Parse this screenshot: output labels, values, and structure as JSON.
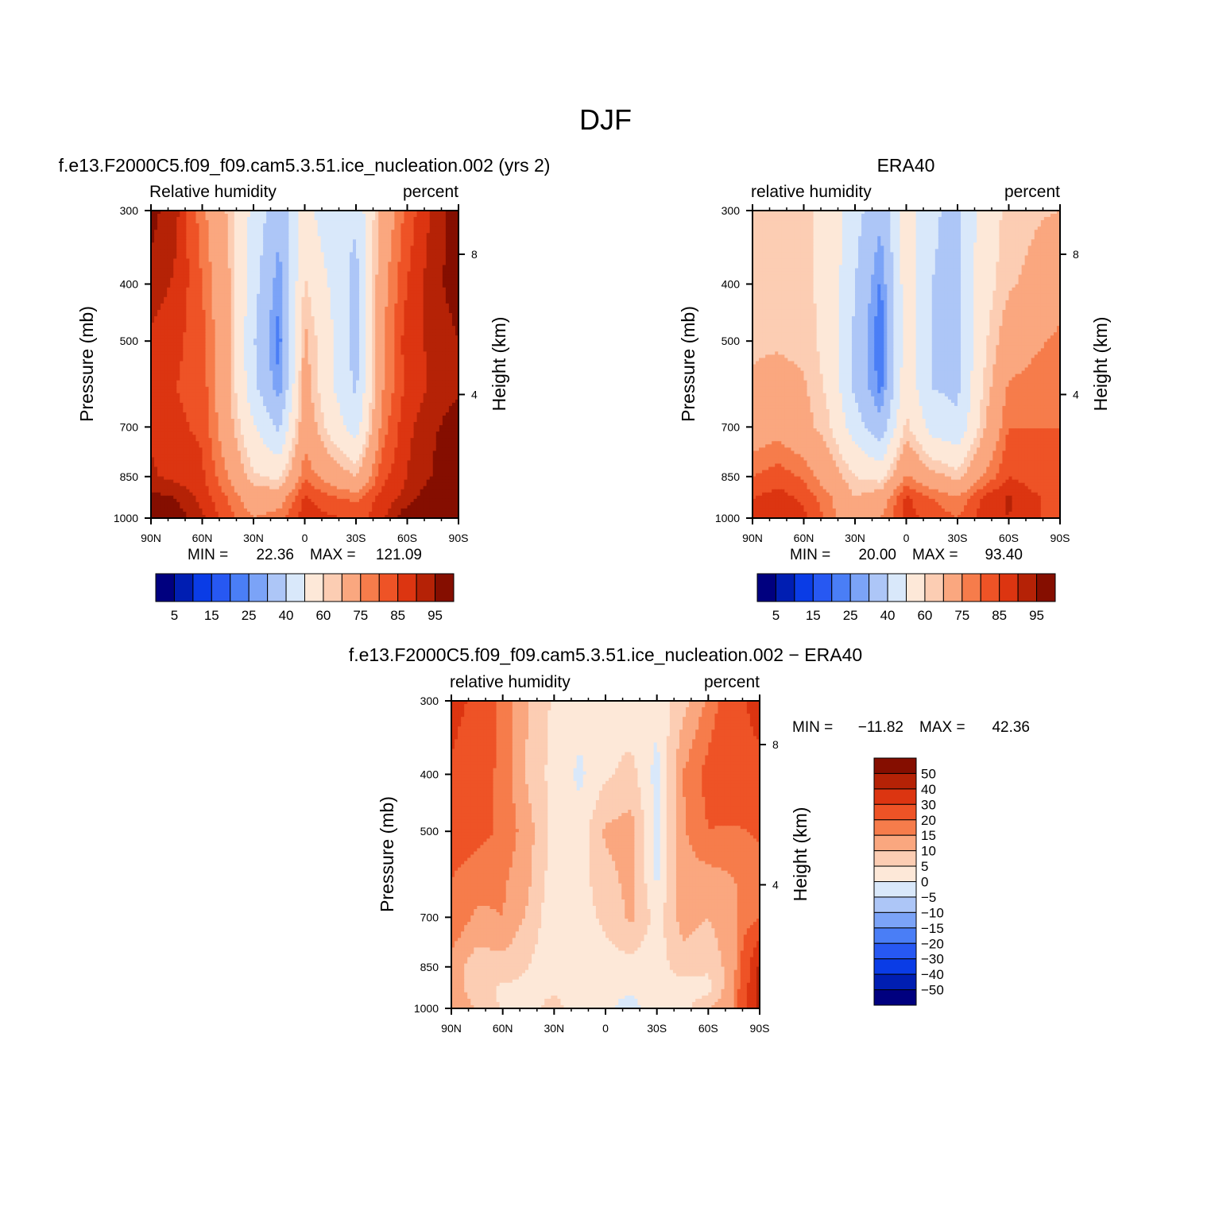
{
  "figure_title": "DJF",
  "colors": {
    "relhum": [
      "#00007f",
      "#001eb2",
      "#0a3ce6",
      "#2758f2",
      "#4a7ef6",
      "#7ba3f7",
      "#adc6f7",
      "#d9e8fa",
      "#fde8d8",
      "#fccdb3",
      "#faa77f",
      "#f67c4b",
      "#ee5326",
      "#dc3511",
      "#b52206",
      "#850e00"
    ],
    "diff": [
      "#00007f",
      "#001eb2",
      "#0a3ce6",
      "#2758f2",
      "#4a7ef6",
      "#7ba3f7",
      "#adc6f7",
      "#d9e8fa",
      "#fde8d8",
      "#fccdb3",
      "#faa77f",
      "#f67c4b",
      "#ee5326",
      "#dc3511",
      "#b52206",
      "#850e00"
    ]
  },
  "chart_data": [
    {
      "type": "heatmap",
      "title": "f.e13.F2000C5.f09_f09.cam5.3.51.ice_nucleation.002 (yrs 2)",
      "left_label": "Relative humidity",
      "right_label": "percent",
      "xlabel": "",
      "ylabel": "Pressure (mb)",
      "ylabel_right": "Height (km)",
      "x_ticks": [
        "90N",
        "60N",
        "30N",
        "0",
        "30S",
        "60S",
        "90S"
      ],
      "x_tick_values": [
        90,
        60,
        30,
        0,
        -30,
        -60,
        -90
      ],
      "xlim": [
        90,
        -90
      ],
      "y_ticks": [
        "300",
        "400",
        "500",
        "700",
        "850",
        "1000"
      ],
      "y_tick_values": [
        300,
        400,
        500,
        700,
        850,
        1000
      ],
      "ylim": [
        1000,
        300
      ],
      "height_ticks": [
        "8",
        "4"
      ],
      "height_tick_values": [
        8,
        4
      ],
      "min_label": "MIN =",
      "min_value": "22.36",
      "max_label": "MAX =",
      "max_value": "121.09",
      "colorbar_orientation": "horizontal",
      "colorbar_labels": [
        "5",
        "15",
        "25",
        "40",
        "60",
        "75",
        "85",
        "95"
      ],
      "levels": [
        5,
        10,
        15,
        20,
        25,
        30,
        40,
        50,
        60,
        65,
        75,
        80,
        85,
        90,
        95
      ],
      "field": {
        "lat": [
          90,
          75,
          60,
          45,
          30,
          15,
          0,
          -15,
          -30,
          -45,
          -60,
          -75,
          -90
        ],
        "lev": [
          300,
          400,
          500,
          600,
          700,
          850,
          925,
          1000
        ],
        "values": [
          [
            97,
            91,
            77,
            64,
            47,
            33,
            54,
            43,
            42,
            68,
            82,
            91,
            99
          ],
          [
            93,
            89,
            80,
            67,
            44,
            26,
            61,
            49,
            36,
            72,
            85,
            93,
            98
          ],
          [
            89,
            86,
            82,
            67,
            41,
            22,
            67,
            52,
            36,
            73,
            88,
            91,
            95
          ],
          [
            87,
            85,
            83,
            67,
            43,
            26,
            69,
            52,
            38,
            74,
            87,
            91,
            93
          ],
          [
            89,
            86,
            84,
            69,
            51,
            38,
            72,
            57,
            45,
            77,
            89,
            93,
            100
          ],
          [
            91,
            88,
            86,
            75,
            61,
            58,
            79,
            71,
            65,
            83,
            90,
            95,
            121
          ],
          [
            97,
            95,
            88,
            80,
            70,
            71,
            86,
            81,
            79,
            87,
            92,
            100,
            121
          ],
          [
            100,
            98,
            91,
            82,
            75,
            78,
            88,
            86,
            83,
            88,
            100,
            100,
            121
          ]
        ]
      }
    },
    {
      "type": "heatmap",
      "title": "ERA40",
      "left_label": "relative humidity",
      "right_label": "percent",
      "xlabel": "",
      "ylabel": "Pressure (mb)",
      "ylabel_right": "Height (km)",
      "x_ticks": [
        "90N",
        "60N",
        "30N",
        "0",
        "30S",
        "60S",
        "90S"
      ],
      "x_tick_values": [
        90,
        60,
        30,
        0,
        -30,
        -60,
        -90
      ],
      "xlim": [
        90,
        -90
      ],
      "y_ticks": [
        "300",
        "400",
        "500",
        "700",
        "850",
        "1000"
      ],
      "y_tick_values": [
        300,
        400,
        500,
        700,
        850,
        1000
      ],
      "ylim": [
        1000,
        300
      ],
      "height_ticks": [
        "8",
        "4"
      ],
      "height_tick_values": [
        8,
        4
      ],
      "min_label": "MIN =",
      "min_value": "20.00",
      "max_label": "MAX =",
      "max_value": "93.40",
      "colorbar_orientation": "horizontal",
      "colorbar_labels": [
        "5",
        "15",
        "25",
        "40",
        "60",
        "75",
        "85",
        "95"
      ],
      "levels": [
        5,
        10,
        15,
        20,
        25,
        30,
        40,
        50,
        60,
        65,
        75,
        80,
        85,
        90,
        95
      ],
      "field": {
        "lat": [
          90,
          75,
          60,
          45,
          30,
          15,
          0,
          -15,
          -30,
          -45,
          -60,
          -75,
          -90
        ],
        "lev": [
          300,
          400,
          500,
          600,
          700,
          850,
          925,
          1000
        ],
        "values": [
          [
            64,
            64,
            62,
            57,
            44,
            32,
            56,
            41,
            38,
            55,
            62,
            64,
            65
          ],
          [
            64,
            63,
            62,
            57,
            40,
            24,
            56,
            40,
            38,
            56,
            64,
            67,
            73
          ],
          [
            64,
            64,
            63,
            57,
            38,
            20,
            56,
            40,
            38,
            58,
            70,
            74,
            76
          ],
          [
            66,
            68,
            66,
            58,
            38,
            23,
            57,
            40,
            38,
            60,
            76,
            77,
            78
          ],
          [
            70,
            72,
            68,
            61,
            45,
            33,
            62,
            46,
            42,
            64,
            80,
            80,
            80
          ],
          [
            80,
            83,
            79,
            70,
            60,
            57,
            76,
            68,
            63,
            75,
            85,
            82,
            82
          ],
          [
            85,
            87,
            84,
            76,
            65,
            70,
            86,
            80,
            76,
            86,
            91,
            86,
            82
          ],
          [
            88,
            88,
            86,
            78,
            68,
            75,
            87,
            83,
            80,
            87,
            90,
            86,
            82
          ]
        ]
      }
    },
    {
      "type": "heatmap",
      "title": "f.e13.F2000C5.f09_f09.cam5.3.51.ice_nucleation.002 − ERA40",
      "left_label": "relative humidity",
      "right_label": "percent",
      "xlabel": "",
      "ylabel": "Pressure (mb)",
      "ylabel_right": "Height (km)",
      "x_ticks": [
        "90N",
        "60N",
        "30N",
        "0",
        "30S",
        "60S",
        "90S"
      ],
      "x_tick_values": [
        90,
        60,
        30,
        0,
        -30,
        -60,
        -90
      ],
      "xlim": [
        90,
        -90
      ],
      "y_ticks": [
        "300",
        "400",
        "500",
        "700",
        "850",
        "1000"
      ],
      "y_tick_values": [
        300,
        400,
        500,
        700,
        850,
        1000
      ],
      "ylim": [
        1000,
        300
      ],
      "height_ticks": [
        "8",
        "4"
      ],
      "height_tick_values": [
        8,
        4
      ],
      "min_label": "MIN =",
      "min_value": "−11.82",
      "max_label": "MAX =",
      "max_value": "42.36",
      "colorbar_orientation": "vertical",
      "colorbar_labels": [
        "50",
        "40",
        "30",
        "20",
        "15",
        "10",
        "5",
        "0",
        "−5",
        "−10",
        "−15",
        "−20",
        "−30",
        "−40",
        "−50"
      ],
      "levels": [
        -50,
        -40,
        -30,
        -20,
        -15,
        -10,
        -5,
        0,
        5,
        10,
        15,
        20,
        30,
        40,
        50
      ],
      "field": {
        "lat": [
          90,
          75,
          60,
          45,
          30,
          15,
          0,
          -15,
          -30,
          -45,
          -60,
          -75,
          -90
        ],
        "lev": [
          300,
          400,
          500,
          600,
          700,
          850,
          925,
          1000
        ],
        "values": [
          [
            33,
            28,
            18,
            10,
            4,
            2,
            3,
            1,
            2,
            8,
            16,
            26,
            34
          ],
          [
            29,
            24,
            18,
            9,
            3,
            -1,
            4,
            7,
            -2,
            15,
            22,
            28,
            27
          ],
          [
            24,
            22,
            19,
            12,
            3,
            2,
            11,
            12,
            -1,
            14,
            20,
            19,
            21
          ],
          [
            20,
            17,
            16,
            11,
            2,
            3,
            8,
            12,
            -1,
            13,
            13,
            15,
            17
          ],
          [
            19,
            14,
            15,
            9,
            1,
            3,
            6,
            11,
            3,
            12,
            10,
            14,
            20
          ],
          [
            13,
            7,
            8,
            5,
            1,
            1,
            3,
            3,
            2,
            8,
            6,
            13,
            42
          ],
          [
            12,
            8,
            4,
            4,
            4,
            2,
            1,
            1,
            4,
            2,
            3,
            15,
            42
          ],
          [
            12,
            10,
            4,
            3,
            7,
            2,
            1,
            -2,
            3,
            3,
            10,
            15,
            42
          ]
        ]
      }
    }
  ]
}
